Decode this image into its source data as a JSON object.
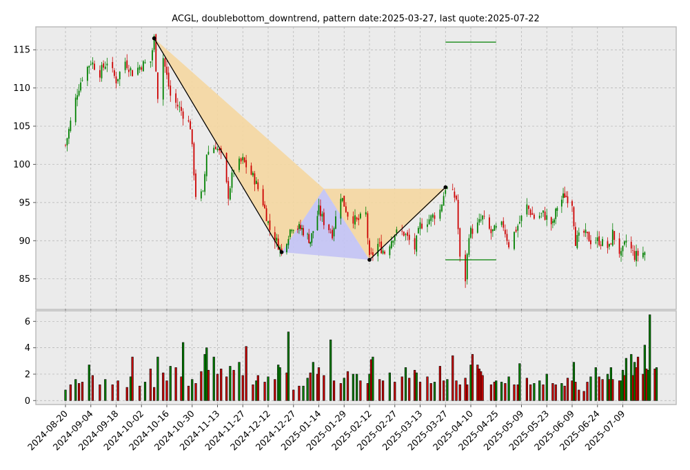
{
  "chart_data": [
    {
      "type": "candlestick",
      "title": "ACGL, doublebottom_downtrend, pattern date:2025-03-27, last quote:2025-07-22",
      "y_ticks": [
        85,
        90,
        95,
        100,
        105,
        110,
        115
      ],
      "ylim": [
        81,
        118
      ],
      "x_ticks": [
        "2024-08-20",
        "2024-09-04",
        "2024-09-18",
        "2024-10-02",
        "2024-10-16",
        "2024-10-30",
        "2024-11-13",
        "2024-11-27",
        "2024-12-12",
        "2024-12-27",
        "2025-01-14",
        "2025-01-29",
        "2025-02-12",
        "2025-02-27",
        "2025-03-13",
        "2025-03-27",
        "2025-04-10",
        "2025-04-25",
        "2025-05-09",
        "2025-05-23",
        "2025-06-09",
        "2025-06-24",
        "2025-07-09"
      ],
      "grid": true,
      "price_path": [
        [
          "2024-08-20",
          102.5
        ],
        [
          "2024-08-23",
          105.5
        ],
        [
          "2024-08-27",
          109.5
        ],
        [
          "2024-08-30",
          111.5
        ],
        [
          "2024-09-04",
          113.5
        ],
        [
          "2024-09-09",
          112
        ],
        [
          "2024-09-13",
          113.5
        ],
        [
          "2024-09-18",
          111
        ],
        [
          "2024-09-23",
          113.5
        ],
        [
          "2024-09-27",
          112
        ],
        [
          "2024-10-02",
          113
        ],
        [
          "2024-10-07",
          113.5
        ],
        [
          "2024-10-09",
          116.5
        ],
        [
          "2024-10-11",
          109
        ],
        [
          "2024-10-14",
          114
        ],
        [
          "2024-10-18",
          109
        ],
        [
          "2024-10-24",
          107
        ],
        [
          "2024-10-29",
          105
        ],
        [
          "2024-11-01",
          96
        ],
        [
          "2024-11-05",
          96
        ],
        [
          "2024-11-07",
          101.5
        ],
        [
          "2024-11-12",
          102.5
        ],
        [
          "2024-11-15",
          101
        ],
        [
          "2024-11-19",
          96
        ],
        [
          "2024-11-22",
          99.5
        ],
        [
          "2024-11-27",
          100.5
        ],
        [
          "2024-12-04",
          98
        ],
        [
          "2024-12-09",
          95
        ],
        [
          "2024-12-13",
          91.5
        ],
        [
          "2024-12-18",
          89.5
        ],
        [
          "2024-12-20",
          88.5
        ],
        [
          "2024-12-26",
          92
        ],
        [
          "2025-01-02",
          91.5
        ],
        [
          "2025-01-08",
          90
        ],
        [
          "2025-01-14",
          94
        ],
        [
          "2025-01-17",
          92.5
        ],
        [
          "2025-01-22",
          91
        ],
        [
          "2025-01-27",
          96
        ],
        [
          "2025-01-31",
          93.5
        ],
        [
          "2025-02-05",
          92.5
        ],
        [
          "2025-02-10",
          93.5
        ],
        [
          "2025-02-12",
          87.5
        ],
        [
          "2025-02-17",
          89.5
        ],
        [
          "2025-02-21",
          88.5
        ],
        [
          "2025-02-27",
          91
        ],
        [
          "2025-03-04",
          91
        ],
        [
          "2025-03-10",
          89
        ],
        [
          "2025-03-13",
          92
        ],
        [
          "2025-03-19",
          93
        ],
        [
          "2025-03-24",
          94
        ],
        [
          "2025-03-27",
          97
        ],
        [
          "2025-04-02",
          95.5
        ],
        [
          "2025-04-04",
          87.5
        ],
        [
          "2025-04-07",
          85
        ],
        [
          "2025-04-09",
          91
        ],
        [
          "2025-04-14",
          92
        ],
        [
          "2025-04-17",
          93
        ],
        [
          "2025-04-22",
          91
        ],
        [
          "2025-04-25",
          91.5
        ],
        [
          "2025-04-29",
          92
        ],
        [
          "2025-05-02",
          89.5
        ],
        [
          "2025-05-07",
          92
        ],
        [
          "2025-05-12",
          94.5
        ],
        [
          "2025-05-16",
          93
        ],
        [
          "2025-05-21",
          93.5
        ],
        [
          "2025-05-27",
          92
        ],
        [
          "2025-05-30",
          94.5
        ],
        [
          "2025-06-04",
          96
        ],
        [
          "2025-06-09",
          95
        ],
        [
          "2025-06-11",
          90
        ],
        [
          "2025-06-16",
          91
        ],
        [
          "2025-06-20",
          90
        ],
        [
          "2025-06-25",
          90
        ],
        [
          "2025-07-01",
          89
        ],
        [
          "2025-07-03",
          91
        ],
        [
          "2025-07-08",
          88
        ],
        [
          "2025-07-11",
          90
        ],
        [
          "2025-07-16",
          88
        ],
        [
          "2025-07-22",
          88.5
        ]
      ],
      "pattern_lines": [
        {
          "from": [
            "2024-10-09",
            116.5
          ],
          "to": [
            "2024-12-20",
            88.5
          ]
        },
        {
          "from": [
            "2025-02-12",
            87.5
          ],
          "to": [
            "2025-03-27",
            97
          ]
        }
      ],
      "pattern_triangles": [
        {
          "color": "#f5d7a1",
          "points": [
            [
              "2024-10-09",
              116.5
            ],
            [
              "2024-12-20",
              88.5
            ],
            [
              "2025-01-17",
              96.8
            ]
          ]
        },
        {
          "color": "#f5d7a1",
          "points": [
            [
              "2025-01-17",
              96.8
            ],
            [
              "2025-03-27",
              96.8
            ],
            [
              "2025-02-12",
              87.5
            ]
          ]
        },
        {
          "color": "#c3c3f5",
          "points": [
            [
              "2024-12-20",
              88.5
            ],
            [
              "2025-01-17",
              96.8
            ],
            [
              "2025-02-12",
              87.5
            ]
          ]
        }
      ],
      "target_lines": [
        {
          "x_range": [
            "2025-03-27",
            "2025-04-25"
          ],
          "y": 116,
          "color": "#008000"
        },
        {
          "x_range": [
            "2025-03-27",
            "2025-04-25"
          ],
          "y": 87.5,
          "color": "#008000"
        }
      ],
      "colors": {
        "up": "#008000",
        "down": "#cc0000",
        "grid": "#b0b0b0",
        "panel": "#ebebeb"
      }
    },
    {
      "type": "bar",
      "y_ticks": [
        0,
        2,
        4,
        6
      ],
      "ylim": [
        -0.3,
        6.8
      ],
      "volume_path": [
        [
          "2024-08-20",
          0.8
        ],
        [
          "2024-08-23",
          1.2
        ],
        [
          "2024-08-26",
          1.6
        ],
        [
          "2024-08-28",
          1.3
        ],
        [
          "2024-08-30",
          1.4
        ],
        [
          "2024-09-03",
          2.7
        ],
        [
          "2024-09-05",
          1.9
        ],
        [
          "2024-09-09",
          1.2
        ],
        [
          "2024-09-12",
          1.6
        ],
        [
          "2024-09-16",
          1.2
        ],
        [
          "2024-09-19",
          1.5
        ],
        [
          "2024-09-24",
          1
        ],
        [
          "2024-09-26",
          1.8
        ],
        [
          "2024-09-27",
          3.3
        ],
        [
          "2024-10-01",
          1.1
        ],
        [
          "2024-10-04",
          1.4
        ],
        [
          "2024-10-07",
          2.4
        ],
        [
          "2024-10-09",
          1
        ],
        [
          "2024-10-11",
          3.3
        ],
        [
          "2024-10-14",
          2.1
        ],
        [
          "2024-10-16",
          1.5
        ],
        [
          "2024-10-18",
          2.6
        ],
        [
          "2024-10-21",
          2.5
        ],
        [
          "2024-10-24",
          1.8
        ],
        [
          "2024-10-25",
          4.4
        ],
        [
          "2024-10-28",
          1.1
        ],
        [
          "2024-10-30",
          1.6
        ],
        [
          "2024-11-01",
          1.3
        ],
        [
          "2024-11-04",
          2.2
        ],
        [
          "2024-11-06",
          3.5
        ],
        [
          "2024-11-07",
          4
        ],
        [
          "2024-11-08",
          2.3
        ],
        [
          "2024-11-11",
          3.3
        ],
        [
          "2024-11-13",
          2
        ],
        [
          "2024-11-15",
          2.4
        ],
        [
          "2024-11-18",
          1.8
        ],
        [
          "2024-11-20",
          2.6
        ],
        [
          "2024-11-22",
          2.3
        ],
        [
          "2024-11-25",
          2.9
        ],
        [
          "2024-11-27",
          1.9
        ],
        [
          "2024-11-29",
          4.1
        ],
        [
          "2024-12-03",
          1.2
        ],
        [
          "2024-12-05",
          1.5
        ],
        [
          "2024-12-06",
          1.9
        ],
        [
          "2024-12-10",
          1.4
        ],
        [
          "2024-12-12",
          1.8
        ],
        [
          "2024-12-16",
          1.6
        ],
        [
          "2024-12-18",
          2.7
        ],
        [
          "2024-12-19",
          2.5
        ],
        [
          "2024-12-23",
          2.1
        ],
        [
          "2024-12-24",
          5.2
        ],
        [
          "2024-12-27",
          0.8
        ],
        [
          "2024-12-31",
          1.1
        ],
        [
          "2025-01-03",
          1.1
        ],
        [
          "2025-01-06",
          1.7
        ],
        [
          "2025-01-08",
          2.1
        ],
        [
          "2025-01-10",
          2.9
        ],
        [
          "2025-01-13",
          2
        ],
        [
          "2025-01-14",
          2.5
        ],
        [
          "2025-01-17",
          1.9
        ],
        [
          "2025-01-21",
          4.6
        ],
        [
          "2025-01-23",
          1.5
        ],
        [
          "2025-01-27",
          1.3
        ],
        [
          "2025-01-29",
          1.7
        ],
        [
          "2025-01-31",
          2.2
        ],
        [
          "2025-02-03",
          2
        ],
        [
          "2025-02-05",
          2
        ],
        [
          "2025-02-07",
          1.5
        ],
        [
          "2025-02-11",
          1.3
        ],
        [
          "2025-02-12",
          2
        ],
        [
          "2025-02-13",
          3.1
        ],
        [
          "2025-02-14",
          3.3
        ],
        [
          "2025-02-18",
          1.6
        ],
        [
          "2025-02-20",
          1.5
        ],
        [
          "2025-02-24",
          2.1
        ],
        [
          "2025-02-27",
          1.4
        ],
        [
          "2025-03-03",
          1.8
        ],
        [
          "2025-03-05",
          2.5
        ],
        [
          "2025-03-07",
          1.7
        ],
        [
          "2025-03-10",
          2.3
        ],
        [
          "2025-03-11",
          2.1
        ],
        [
          "2025-03-13",
          1.4
        ],
        [
          "2025-03-17",
          1.8
        ],
        [
          "2025-03-19",
          1.3
        ],
        [
          "2025-03-21",
          1.4
        ],
        [
          "2025-03-24",
          2.6
        ],
        [
          "2025-03-26",
          1.5
        ],
        [
          "2025-03-28",
          1.6
        ],
        [
          "2025-03-31",
          3.4
        ],
        [
          "2025-04-02",
          1.5
        ],
        [
          "2025-04-04",
          1.2
        ],
        [
          "2025-04-07",
          1.7
        ],
        [
          "2025-04-08",
          1.2
        ],
        [
          "2025-04-10",
          2.7
        ],
        [
          "2025-04-11",
          3.5
        ],
        [
          "2025-04-14",
          2.7
        ],
        [
          "2025-04-15",
          2.4
        ],
        [
          "2025-04-16",
          2.2
        ],
        [
          "2025-04-17",
          1.9
        ],
        [
          "2025-04-22",
          1.2
        ],
        [
          "2025-04-24",
          1.4
        ],
        [
          "2025-04-25",
          1.5
        ],
        [
          "2025-04-28",
          1.4
        ],
        [
          "2025-04-30",
          1.3
        ],
        [
          "2025-05-02",
          1.8
        ],
        [
          "2025-05-05",
          1.2
        ],
        [
          "2025-05-07",
          1.2
        ],
        [
          "2025-05-08",
          2.8
        ],
        [
          "2025-05-12",
          1.7
        ],
        [
          "2025-05-14",
          1.2
        ],
        [
          "2025-05-16",
          1.3
        ],
        [
          "2025-05-19",
          1.5
        ],
        [
          "2025-05-21",
          1.2
        ],
        [
          "2025-05-23",
          2
        ],
        [
          "2025-05-27",
          1.3
        ],
        [
          "2025-05-29",
          1.2
        ],
        [
          "2025-06-02",
          1.3
        ],
        [
          "2025-06-04",
          1.1
        ],
        [
          "2025-06-06",
          1.7
        ],
        [
          "2025-06-09",
          1.5
        ],
        [
          "2025-06-10",
          2.9
        ],
        [
          "2025-06-11",
          1.4
        ],
        [
          "2025-06-13",
          0.8
        ],
        [
          "2025-06-16",
          0.7
        ],
        [
          "2025-06-18",
          1.4
        ],
        [
          "2025-06-20",
          1.8
        ],
        [
          "2025-06-23",
          2.5
        ],
        [
          "2025-06-25",
          1.8
        ],
        [
          "2025-06-27",
          1.6
        ],
        [
          "2025-06-30",
          2
        ],
        [
          "2025-07-01",
          1.6
        ],
        [
          "2025-07-02",
          2.5
        ],
        [
          "2025-07-03",
          1.6
        ],
        [
          "2025-07-07",
          1.5
        ],
        [
          "2025-07-08",
          1.5
        ],
        [
          "2025-07-09",
          2.3
        ],
        [
          "2025-07-10",
          1.9
        ],
        [
          "2025-07-11",
          3.2
        ],
        [
          "2025-07-14",
          3.5
        ],
        [
          "2025-07-15",
          1.9
        ],
        [
          "2025-07-16",
          2.9
        ],
        [
          "2025-07-17",
          2.5
        ],
        [
          "2025-07-18",
          3.3
        ],
        [
          "2025-07-21",
          2
        ],
        [
          "2025-07-22",
          4.2
        ],
        [
          "2025-07-23",
          2.4
        ],
        [
          "2025-07-24",
          2.3
        ],
        [
          "2025-07-25",
          6.5
        ],
        [
          "2025-07-28",
          2.4
        ],
        [
          "2025-07-29",
          2.5
        ]
      ],
      "colors": {
        "up": "#008000",
        "down": "#cc0000",
        "grid": "#b0b0b0",
        "panel": "#ebebeb"
      }
    }
  ]
}
